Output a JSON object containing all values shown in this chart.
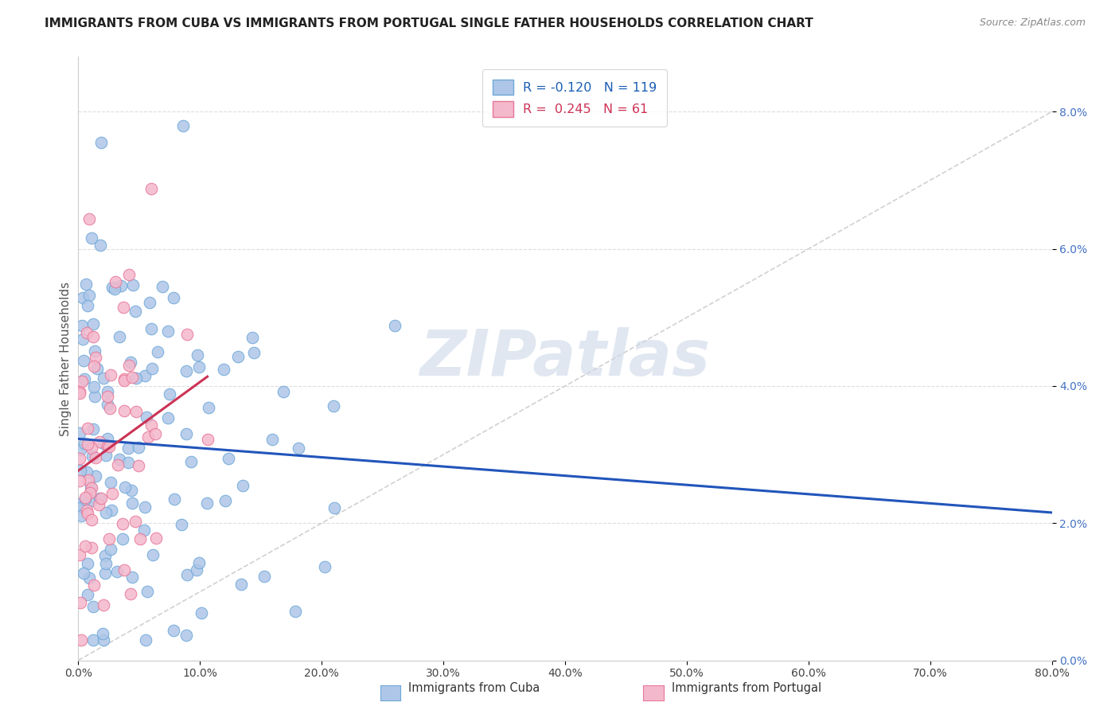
{
  "title": "IMMIGRANTS FROM CUBA VS IMMIGRANTS FROM PORTUGAL SINGLE FATHER HOUSEHOLDS CORRELATION CHART",
  "source": "Source: ZipAtlas.com",
  "ylabel": "Single Father Households",
  "x_min": 0.0,
  "x_max": 80.0,
  "y_min": 0.0,
  "y_max": 8.8,
  "x_ticks": [
    0.0,
    10.0,
    20.0,
    30.0,
    40.0,
    50.0,
    60.0,
    70.0,
    80.0
  ],
  "y_ticks": [
    0.0,
    2.0,
    4.0,
    6.0,
    8.0
  ],
  "cuba_R": -0.12,
  "cuba_N": 119,
  "portugal_R": 0.245,
  "portugal_N": 61,
  "cuba_color": "#aec6e8",
  "cuba_edge_color": "#6fa8d8",
  "portugal_color": "#f4b8cc",
  "portugal_edge_color": "#e87898",
  "cuba_line_color": "#2255bb",
  "portugal_line_color": "#cc3355",
  "diagonal_line_color": "#cccccc",
  "background_color": "#ffffff",
  "grid_color": "#dddddd",
  "title_color": "#222222",
  "watermark_color": "#ccd8e8",
  "cuba_line_start_y": 3.22,
  "cuba_line_end_y": 2.52,
  "portugal_line_start_y": 2.75,
  "portugal_line_end_y": 4.45,
  "portugal_line_end_x": 14.0
}
